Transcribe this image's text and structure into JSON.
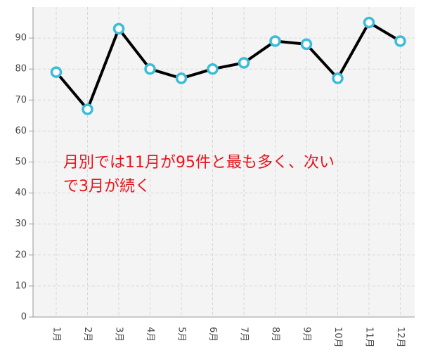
{
  "chart_data": {
    "type": "line",
    "categories": [
      "1月",
      "2月",
      "3月",
      "4月",
      "5月",
      "6月",
      "7月",
      "8月",
      "9月",
      "10月",
      "11月",
      "12月"
    ],
    "values": [
      79,
      67,
      93,
      80,
      77,
      80,
      82,
      89,
      88,
      77,
      95,
      89
    ],
    "color": "#000000",
    "marker_color": "#3bbcd8",
    "ylim": [
      0,
      100
    ],
    "yticks": [
      0,
      10,
      20,
      30,
      40,
      50,
      60,
      70,
      80,
      90
    ],
    "grid": true,
    "annotation": [
      "月別では11月が95件と最も多く、次い",
      "で3月が続く"
    ]
  }
}
